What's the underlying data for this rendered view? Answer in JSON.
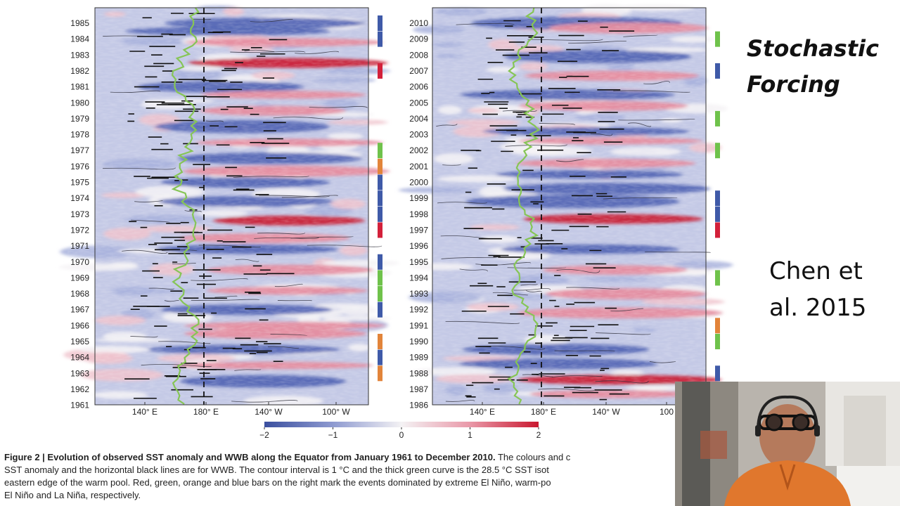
{
  "slide": {
    "title_line1": "Stochastic",
    "title_line2": "Forcing",
    "citation_line1": "Chen et",
    "citation_line2": "al. 2015"
  },
  "caption": {
    "label": "Figure 2 | Evolution of observed SST anomaly and WWB along the Equator from January 1961 to December 2010.",
    "line1_rest": " The colours and c",
    "line2": "SST anomaly and the horizontal black lines are for WWB. The contour interval is 1 °C and the thick green curve is the 28.5 °C SST isot",
    "line3": "eastern edge of the warm pool. Red, green, orange and blue bars on the right mark the events dominated by extreme El Niño, warm-po",
    "line4": "El Niño and La Niña, respectively."
  },
  "chart_data": [
    {
      "type": "heatmap",
      "panel": "left",
      "y_ticks": [
        "1961",
        "1962",
        "1963",
        "1964",
        "1965",
        "1966",
        "1967",
        "1968",
        "1969",
        "1970",
        "1971",
        "1972",
        "1973",
        "1974",
        "1975",
        "1976",
        "1977",
        "1978",
        "1979",
        "1980",
        "1981",
        "1982",
        "1983",
        "1984",
        "1985"
      ],
      "x_ticks": [
        "140° E",
        "180° E",
        "140° W",
        "100° W"
      ],
      "dashed_line_at": "180° E",
      "colorbar": {
        "ticks": [
          "−2",
          "−1",
          "0",
          "1",
          "2"
        ],
        "range": [
          -2,
          2
        ]
      },
      "events": [
        {
          "year": 1982,
          "type": "extreme El Niño",
          "color": "#d3203a"
        },
        {
          "year": 1984,
          "type": "La Niña",
          "color": "#3f5aa8"
        },
        {
          "year": 1985,
          "type": "La Niña",
          "color": "#3f5aa8"
        },
        {
          "year": 1972,
          "type": "extreme El Niño",
          "color": "#d3203a"
        },
        {
          "year": 1973,
          "type": "La Niña",
          "color": "#3f5aa8"
        },
        {
          "year": 1974,
          "type": "La Niña",
          "color": "#3f5aa8"
        },
        {
          "year": 1975,
          "type": "La Niña",
          "color": "#3f5aa8"
        },
        {
          "year": 1976,
          "type": "orange",
          "color": "#e2843a"
        },
        {
          "year": 1977,
          "type": "warm-pool El Niño",
          "color": "#6fc24b"
        },
        {
          "year": 1967,
          "type": "La Niña",
          "color": "#3f5aa8"
        },
        {
          "year": 1968,
          "type": "warm-pool El Niño",
          "color": "#6fc24b"
        },
        {
          "year": 1969,
          "type": "warm-pool El Niño",
          "color": "#6fc24b"
        },
        {
          "year": 1970,
          "type": "La Niña",
          "color": "#3f5aa8"
        },
        {
          "year": 1963,
          "type": "orange",
          "color": "#e2843a"
        },
        {
          "year": 1964,
          "type": "La Niña",
          "color": "#3f5aa8"
        },
        {
          "year": 1965,
          "type": "orange",
          "color": "#e2843a"
        }
      ],
      "warm_rows": [
        1982.5,
        1972.6,
        1966,
        1963.5,
        1965.5,
        1969.5,
        1977.5,
        1979.5,
        1983.8,
        1980.5,
        1968.2,
        1975.7,
        1971.5
      ],
      "cool_rows": [
        1975,
        1973.8,
        1970.8,
        1984.5,
        1964.5,
        1962.5,
        1967,
        1978.5,
        1981,
        1976.5,
        1985
      ]
    },
    {
      "type": "heatmap",
      "panel": "right",
      "y_ticks": [
        "1986",
        "1987",
        "1988",
        "1989",
        "1990",
        "1991",
        "1992",
        "1993",
        "1994",
        "1995",
        "1996",
        "1997",
        "1998",
        "1999",
        "2000",
        "2001",
        "2002",
        "2003",
        "2004",
        "2005",
        "2006",
        "2007",
        "2008",
        "2009",
        "2010"
      ],
      "x_ticks": [
        "140° E",
        "180° E",
        "140° W",
        "100"
      ],
      "dashed_line_at": "180° E",
      "events": [
        {
          "year": 2009,
          "type": "warm-pool El Niño",
          "color": "#6fc24b"
        },
        {
          "year": 2007,
          "type": "La Niña",
          "color": "#3f5aa8"
        },
        {
          "year": 2004,
          "type": "warm-pool El Niño",
          "color": "#6fc24b"
        },
        {
          "year": 2002,
          "type": "warm-pool El Niño",
          "color": "#6fc24b"
        },
        {
          "year": 1999,
          "type": "La Niña",
          "color": "#3f5aa8"
        },
        {
          "year": 1998,
          "type": "La Niña",
          "color": "#3f5aa8"
        },
        {
          "year": 1997,
          "type": "extreme El Niño",
          "color": "#d3203a"
        },
        {
          "year": 1994,
          "type": "warm-pool El Niño",
          "color": "#6fc24b"
        },
        {
          "year": 1991,
          "type": "orange",
          "color": "#e2843a"
        },
        {
          "year": 1990,
          "type": "warm-pool El Niño",
          "color": "#6fc24b"
        },
        {
          "year": 1988,
          "type": "La Niña",
          "color": "#3f5aa8"
        },
        {
          "year": 1987,
          "type": "orange",
          "color": "#e2843a"
        }
      ],
      "warm_rows": [
        1997.7,
        1987.6,
        1991.8,
        2009.7,
        1994.5,
        2002.6,
        2004.8,
        2006.7,
        1993,
        1986.7,
        2001.2
      ],
      "cool_rows": [
        1988.6,
        1998.8,
        2007.9,
        1999.6,
        1995.8,
        2000.5,
        1989.5,
        2005.5,
        2003.2,
        2010
      ]
    }
  ],
  "webcam": {
    "icon": "presenter-webcam"
  }
}
